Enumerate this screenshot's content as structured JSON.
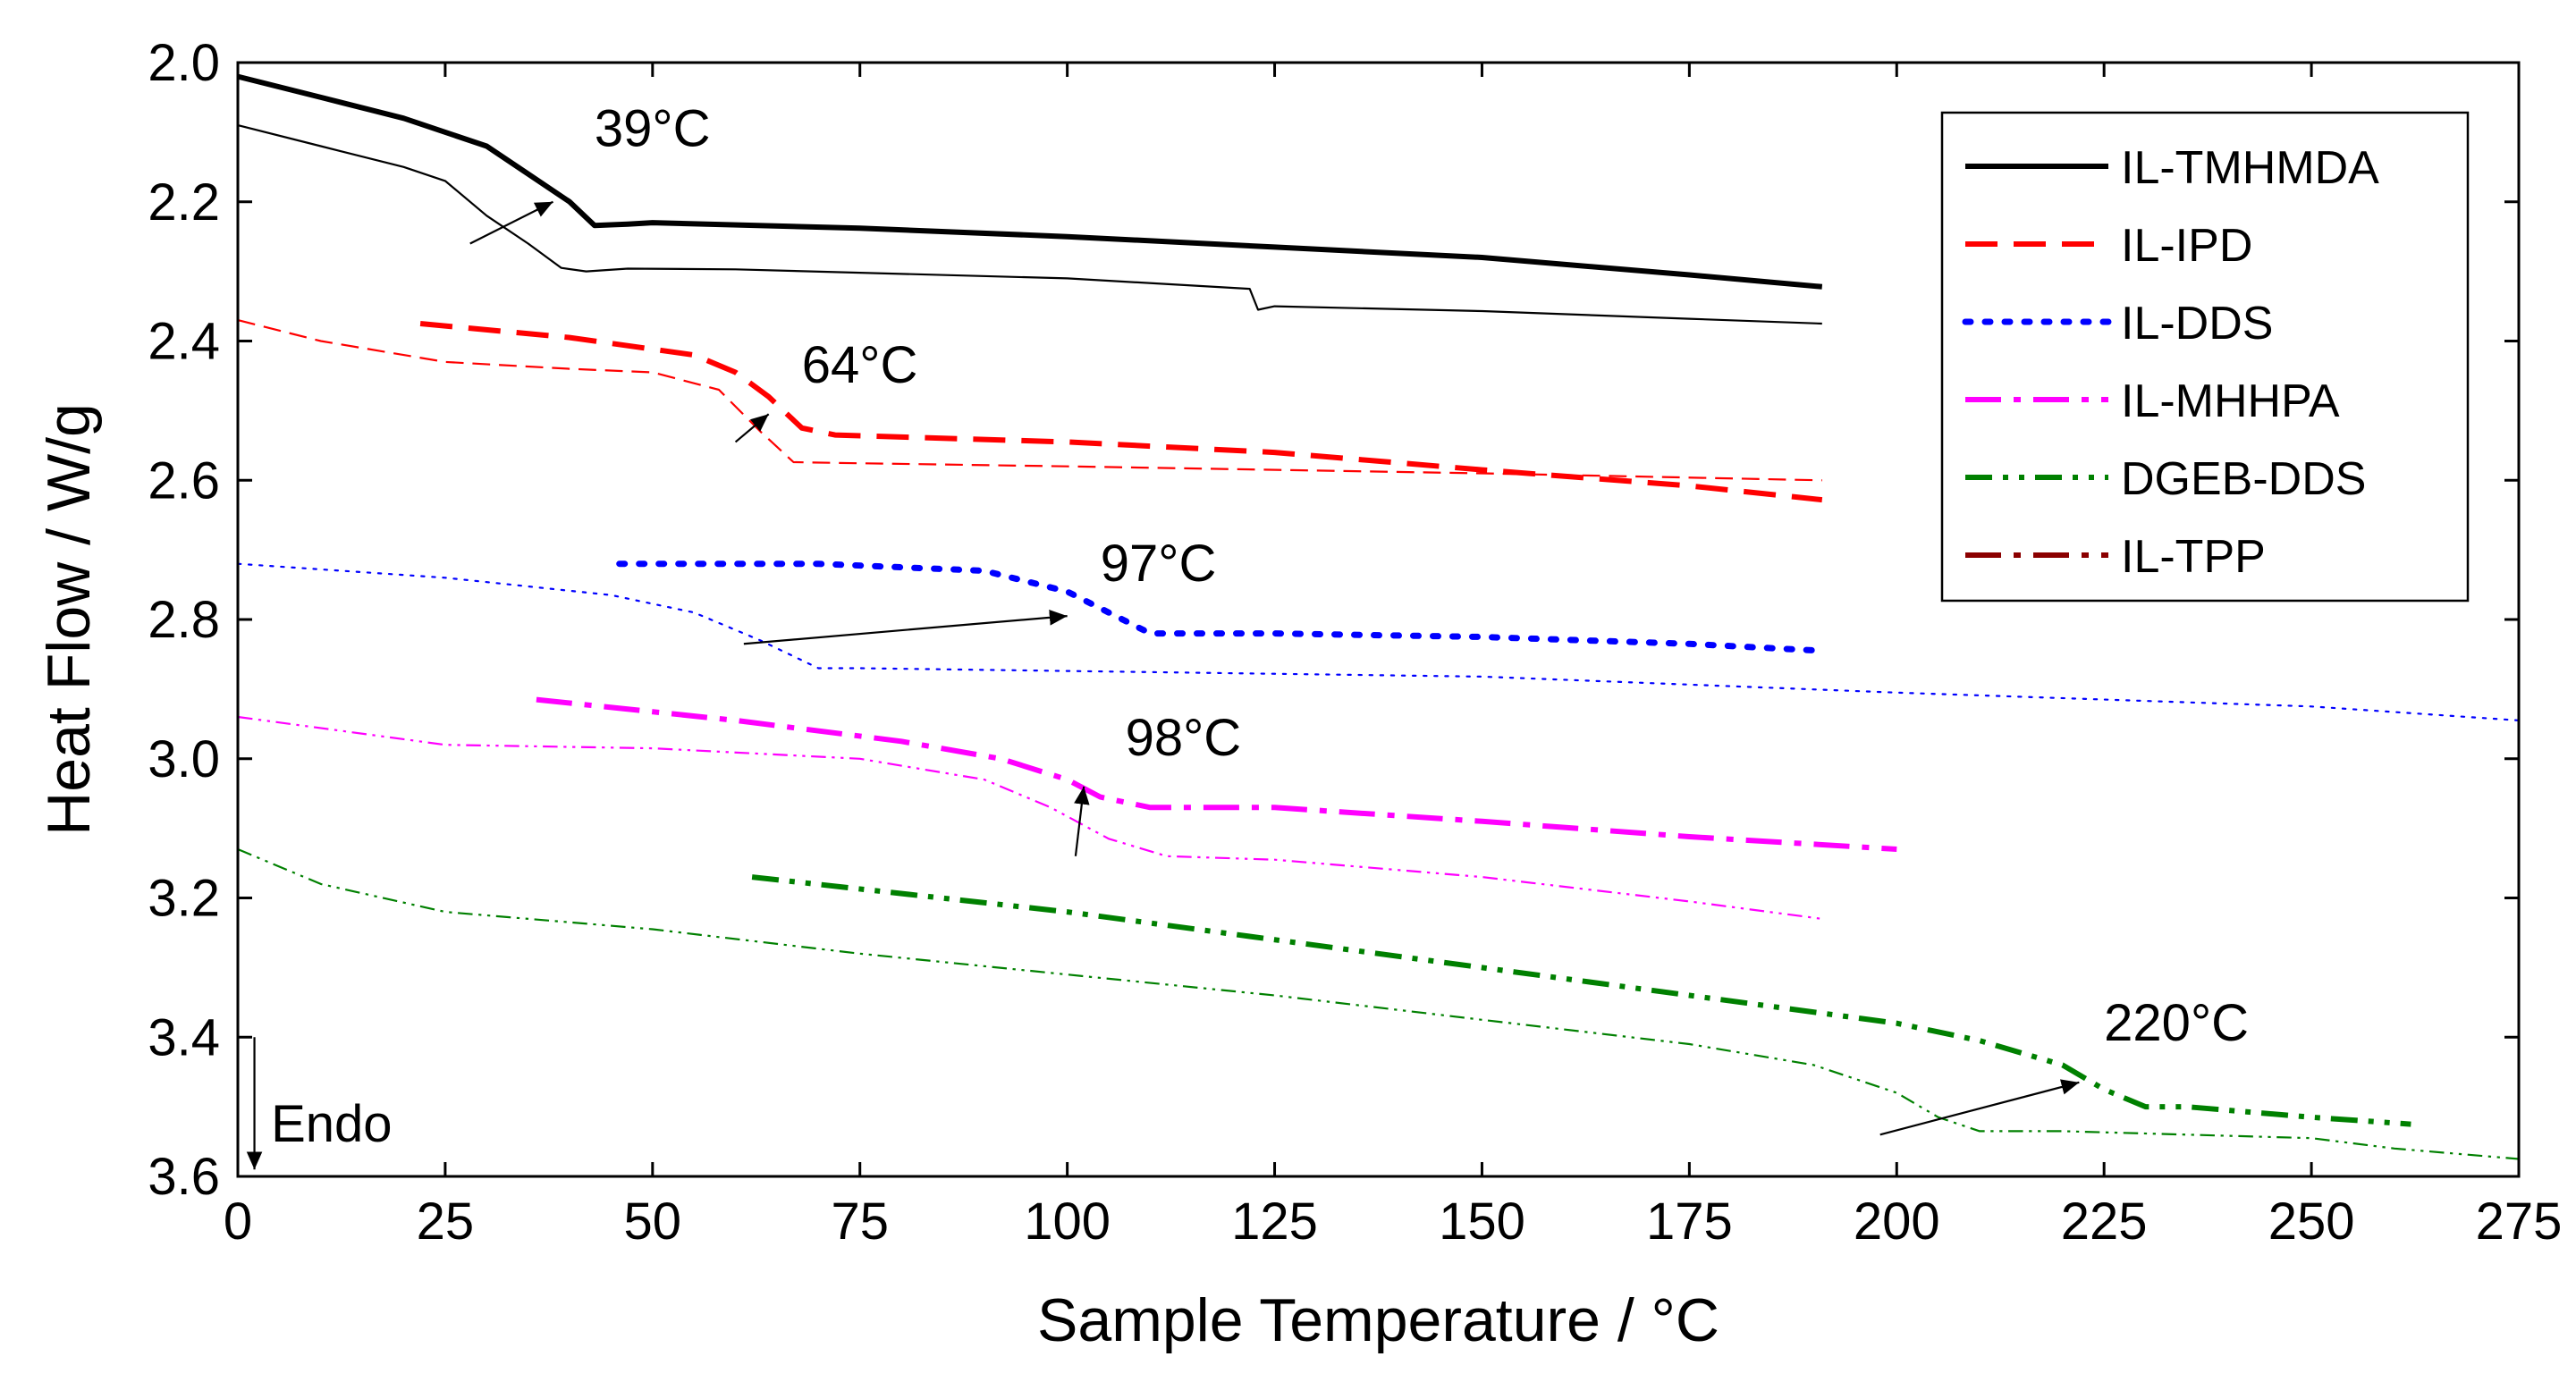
{
  "chart_data": {
    "type": "line",
    "title": "",
    "xlabel": "Sample Temperature / °C",
    "ylabel": "Heat Flow / W/g",
    "xlim": [
      0,
      275
    ],
    "ylim": [
      2.0,
      3.6
    ],
    "y_inverted": true,
    "x_ticks": [
      0,
      25,
      50,
      75,
      100,
      125,
      150,
      175,
      200,
      225,
      250,
      275
    ],
    "y_ticks": [
      2.0,
      2.2,
      2.4,
      2.6,
      2.8,
      3.0,
      3.2,
      3.4,
      3.6
    ],
    "x_tick_labels": [
      "0",
      "25",
      "50",
      "75",
      "100",
      "125",
      "150",
      "175",
      "200",
      "225",
      "250",
      "275"
    ],
    "y_tick_labels": [
      "2.0",
      "2.2",
      "2.4",
      "2.6",
      "2.8",
      "3.0",
      "3.2",
      "3.4",
      "3.6"
    ],
    "grid": false,
    "legend_position": "top-right",
    "series": [
      {
        "name": "IL-TMHMDA",
        "color": "#000000",
        "dash": "solid",
        "in_legend": true,
        "weight": "thick",
        "points": [
          [
            0,
            2.02
          ],
          [
            10,
            2.05
          ],
          [
            20,
            2.08
          ],
          [
            30,
            2.12
          ],
          [
            35,
            2.16
          ],
          [
            40,
            2.2
          ],
          [
            43,
            2.234
          ],
          [
            47,
            2.232
          ],
          [
            50,
            2.23
          ],
          [
            75,
            2.238
          ],
          [
            100,
            2.25
          ],
          [
            125,
            2.265
          ],
          [
            150,
            2.28
          ],
          [
            175,
            2.305
          ],
          [
            191,
            2.322
          ]
        ]
      },
      {
        "name": "IL-TMHMDA (2nd)",
        "color": "#000000",
        "dash": "solid",
        "in_legend": false,
        "weight": "thin",
        "points": [
          [
            0,
            2.09
          ],
          [
            10,
            2.12
          ],
          [
            20,
            2.15
          ],
          [
            25,
            2.17
          ],
          [
            30,
            2.22
          ],
          [
            35,
            2.26
          ],
          [
            39,
            2.295
          ],
          [
            42,
            2.3
          ],
          [
            47,
            2.296
          ],
          [
            60,
            2.297
          ],
          [
            100,
            2.31
          ],
          [
            122,
            2.325
          ],
          [
            123,
            2.355
          ],
          [
            125,
            2.35
          ],
          [
            150,
            2.357
          ],
          [
            175,
            2.368
          ],
          [
            191,
            2.375
          ]
        ]
      },
      {
        "name": "IL-IPD",
        "color": "#ff0000",
        "dash": "dash",
        "in_legend": true,
        "weight": "thick",
        "points": [
          [
            22,
            2.375
          ],
          [
            40,
            2.395
          ],
          [
            55,
            2.42
          ],
          [
            60,
            2.445
          ],
          [
            64,
            2.48
          ],
          [
            68,
            2.525
          ],
          [
            72,
            2.535
          ],
          [
            100,
            2.545
          ],
          [
            125,
            2.56
          ],
          [
            150,
            2.585
          ],
          [
            175,
            2.608
          ],
          [
            191,
            2.628
          ]
        ]
      },
      {
        "name": "IL-IPD (2nd)",
        "color": "#ff0000",
        "dash": "dash",
        "in_legend": false,
        "weight": "thin",
        "points": [
          [
            0,
            2.37
          ],
          [
            10,
            2.4
          ],
          [
            25,
            2.43
          ],
          [
            40,
            2.44
          ],
          [
            50,
            2.445
          ],
          [
            58,
            2.47
          ],
          [
            63,
            2.53
          ],
          [
            67,
            2.574
          ],
          [
            72,
            2.575
          ],
          [
            100,
            2.58
          ],
          [
            150,
            2.59
          ],
          [
            191,
            2.6
          ]
        ]
      },
      {
        "name": "IL-DDS",
        "color": "#0000ff",
        "dash": "dot",
        "in_legend": true,
        "weight": "thick",
        "points": [
          [
            46,
            2.72
          ],
          [
            70,
            2.72
          ],
          [
            90,
            2.73
          ],
          [
            100,
            2.76
          ],
          [
            105,
            2.79
          ],
          [
            110,
            2.82
          ],
          [
            125,
            2.82
          ],
          [
            150,
            2.825
          ],
          [
            175,
            2.835
          ],
          [
            191,
            2.845
          ]
        ]
      },
      {
        "name": "IL-DDS (2nd)",
        "color": "#0000ff",
        "dash": "dot",
        "in_legend": false,
        "weight": "thin",
        "points": [
          [
            0,
            2.72
          ],
          [
            25,
            2.74
          ],
          [
            45,
            2.765
          ],
          [
            55,
            2.79
          ],
          [
            63,
            2.83
          ],
          [
            70,
            2.87
          ],
          [
            75,
            2.87
          ],
          [
            100,
            2.874
          ],
          [
            150,
            2.882
          ],
          [
            200,
            2.905
          ],
          [
            250,
            2.925
          ],
          [
            275,
            2.945
          ]
        ]
      },
      {
        "name": "IL-MHHPA",
        "color": "#ff00ff",
        "dash": "dashdot",
        "in_legend": true,
        "weight": "thick",
        "points": [
          [
            36,
            2.915
          ],
          [
            60,
            2.945
          ],
          [
            80,
            2.975
          ],
          [
            92,
            3.0
          ],
          [
            100,
            3.03
          ],
          [
            104,
            3.055
          ],
          [
            110,
            3.07
          ],
          [
            125,
            3.07
          ],
          [
            150,
            3.09
          ],
          [
            175,
            3.112
          ],
          [
            200,
            3.13
          ]
        ]
      },
      {
        "name": "IL-MHHPA (2nd)",
        "color": "#ff00ff",
        "dash": "dashdotdot",
        "in_legend": false,
        "weight": "thin",
        "points": [
          [
            0,
            2.94
          ],
          [
            25,
            2.98
          ],
          [
            50,
            2.985
          ],
          [
            75,
            3.0
          ],
          [
            90,
            3.03
          ],
          [
            98,
            3.07
          ],
          [
            105,
            3.115
          ],
          [
            112,
            3.14
          ],
          [
            125,
            3.145
          ],
          [
            150,
            3.17
          ],
          [
            175,
            3.205
          ],
          [
            191,
            3.23
          ]
        ]
      },
      {
        "name": "DGEB-DDS",
        "color": "#008000",
        "dash": "dashdotdot",
        "in_legend": true,
        "weight": "thick",
        "points": [
          [
            62,
            3.17
          ],
          [
            100,
            3.22
          ],
          [
            150,
            3.3
          ],
          [
            175,
            3.34
          ],
          [
            200,
            3.38
          ],
          [
            210,
            3.405
          ],
          [
            220,
            3.44
          ],
          [
            225,
            3.475
          ],
          [
            230,
            3.5
          ],
          [
            235,
            3.5
          ],
          [
            250,
            3.515
          ],
          [
            262,
            3.525
          ]
        ]
      },
      {
        "name": "DGEB-DDS (2nd)",
        "color": "#008000",
        "dash": "dashdotdot",
        "in_legend": false,
        "weight": "thin",
        "points": [
          [
            0,
            3.13
          ],
          [
            10,
            3.18
          ],
          [
            25,
            3.22
          ],
          [
            50,
            3.245
          ],
          [
            75,
            3.28
          ],
          [
            100,
            3.31
          ],
          [
            125,
            3.34
          ],
          [
            150,
            3.375
          ],
          [
            175,
            3.41
          ],
          [
            190,
            3.44
          ],
          [
            200,
            3.48
          ],
          [
            205,
            3.515
          ],
          [
            210,
            3.535
          ],
          [
            220,
            3.535
          ],
          [
            250,
            3.545
          ],
          [
            260,
            3.56
          ],
          [
            275,
            3.575
          ]
        ]
      },
      {
        "name": "IL-TPP",
        "color": "#8b0000",
        "dash": "dashdot",
        "in_legend": true,
        "weight": "thick",
        "points": []
      }
    ],
    "annotations": [
      {
        "text": "39°C",
        "at": [
          43,
          2.12
        ],
        "arrow_from": [
          28,
          2.26
        ],
        "arrow_to": [
          38,
          2.2
        ]
      },
      {
        "text": "64°C",
        "at": [
          68,
          2.46
        ],
        "arrow_from": [
          60,
          2.545
        ],
        "arrow_to": [
          64,
          2.505
        ]
      },
      {
        "text": "97°C",
        "at": [
          104,
          2.745
        ],
        "arrow_from": [
          61,
          2.835
        ],
        "arrow_to": [
          100,
          2.795
        ]
      },
      {
        "text": "98°C",
        "at": [
          107,
          2.995
        ],
        "arrow_from": [
          101,
          3.14
        ],
        "arrow_to": [
          102,
          3.04
        ]
      },
      {
        "text": "220°C",
        "at": [
          225,
          3.405
        ],
        "arrow_from": [
          198,
          3.54
        ],
        "arrow_to": [
          222,
          3.465
        ]
      },
      {
        "text": "Endo",
        "at": [
          4,
          3.55
        ],
        "arrow_from": [
          2,
          3.4
        ],
        "arrow_to": [
          2,
          3.59
        ]
      }
    ]
  }
}
